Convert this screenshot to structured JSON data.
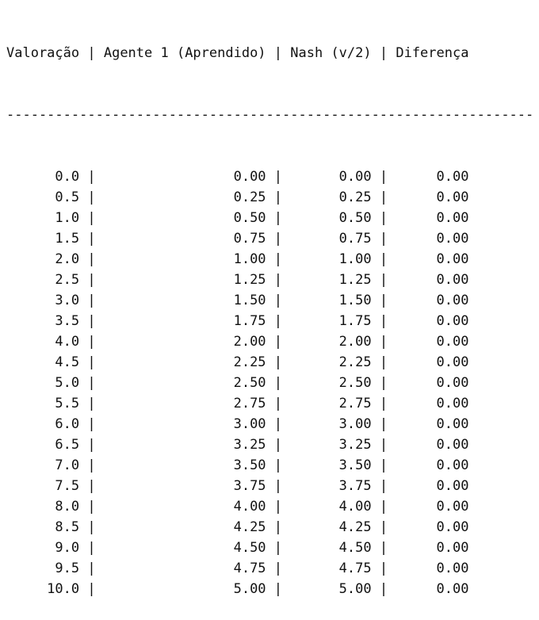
{
  "header": {
    "col_valoracao": "Valoração",
    "col_agente": "Agente 1 (Aprendido)",
    "col_nash": "Nash (v/2)",
    "col_diferenca": "Diferença"
  },
  "separator_line": "-----------------------------------------------------------------",
  "rows": [
    {
      "valoracao": "0.0",
      "agente": "0.00",
      "nash": "0.00",
      "diferenca": "0.00"
    },
    {
      "valoracao": "0.5",
      "agente": "0.25",
      "nash": "0.25",
      "diferenca": "0.00"
    },
    {
      "valoracao": "1.0",
      "agente": "0.50",
      "nash": "0.50",
      "diferenca": "0.00"
    },
    {
      "valoracao": "1.5",
      "agente": "0.75",
      "nash": "0.75",
      "diferenca": "0.00"
    },
    {
      "valoracao": "2.0",
      "agente": "1.00",
      "nash": "1.00",
      "diferenca": "0.00"
    },
    {
      "valoracao": "2.5",
      "agente": "1.25",
      "nash": "1.25",
      "diferenca": "0.00"
    },
    {
      "valoracao": "3.0",
      "agente": "1.50",
      "nash": "1.50",
      "diferenca": "0.00"
    },
    {
      "valoracao": "3.5",
      "agente": "1.75",
      "nash": "1.75",
      "diferenca": "0.00"
    },
    {
      "valoracao": "4.0",
      "agente": "2.00",
      "nash": "2.00",
      "diferenca": "0.00"
    },
    {
      "valoracao": "4.5",
      "agente": "2.25",
      "nash": "2.25",
      "diferenca": "0.00"
    },
    {
      "valoracao": "5.0",
      "agente": "2.50",
      "nash": "2.50",
      "diferenca": "0.00"
    },
    {
      "valoracao": "5.5",
      "agente": "2.75",
      "nash": "2.75",
      "diferenca": "0.00"
    },
    {
      "valoracao": "6.0",
      "agente": "3.00",
      "nash": "3.00",
      "diferenca": "0.00"
    },
    {
      "valoracao": "6.5",
      "agente": "3.25",
      "nash": "3.25",
      "diferenca": "0.00"
    },
    {
      "valoracao": "7.0",
      "agente": "3.50",
      "nash": "3.50",
      "diferenca": "0.00"
    },
    {
      "valoracao": "7.5",
      "agente": "3.75",
      "nash": "3.75",
      "diferenca": "0.00"
    },
    {
      "valoracao": "8.0",
      "agente": "4.00",
      "nash": "4.00",
      "diferenca": "0.00"
    },
    {
      "valoracao": "8.5",
      "agente": "4.25",
      "nash": "4.25",
      "diferenca": "0.00"
    },
    {
      "valoracao": "9.0",
      "agente": "4.50",
      "nash": "4.50",
      "diferenca": "0.00"
    },
    {
      "valoracao": "9.5",
      "agente": "4.75",
      "nash": "4.75",
      "diferenca": "0.00"
    },
    {
      "valoracao": "10.0",
      "agente": "5.00",
      "nash": "5.00",
      "diferenca": "0.00"
    }
  ]
}
